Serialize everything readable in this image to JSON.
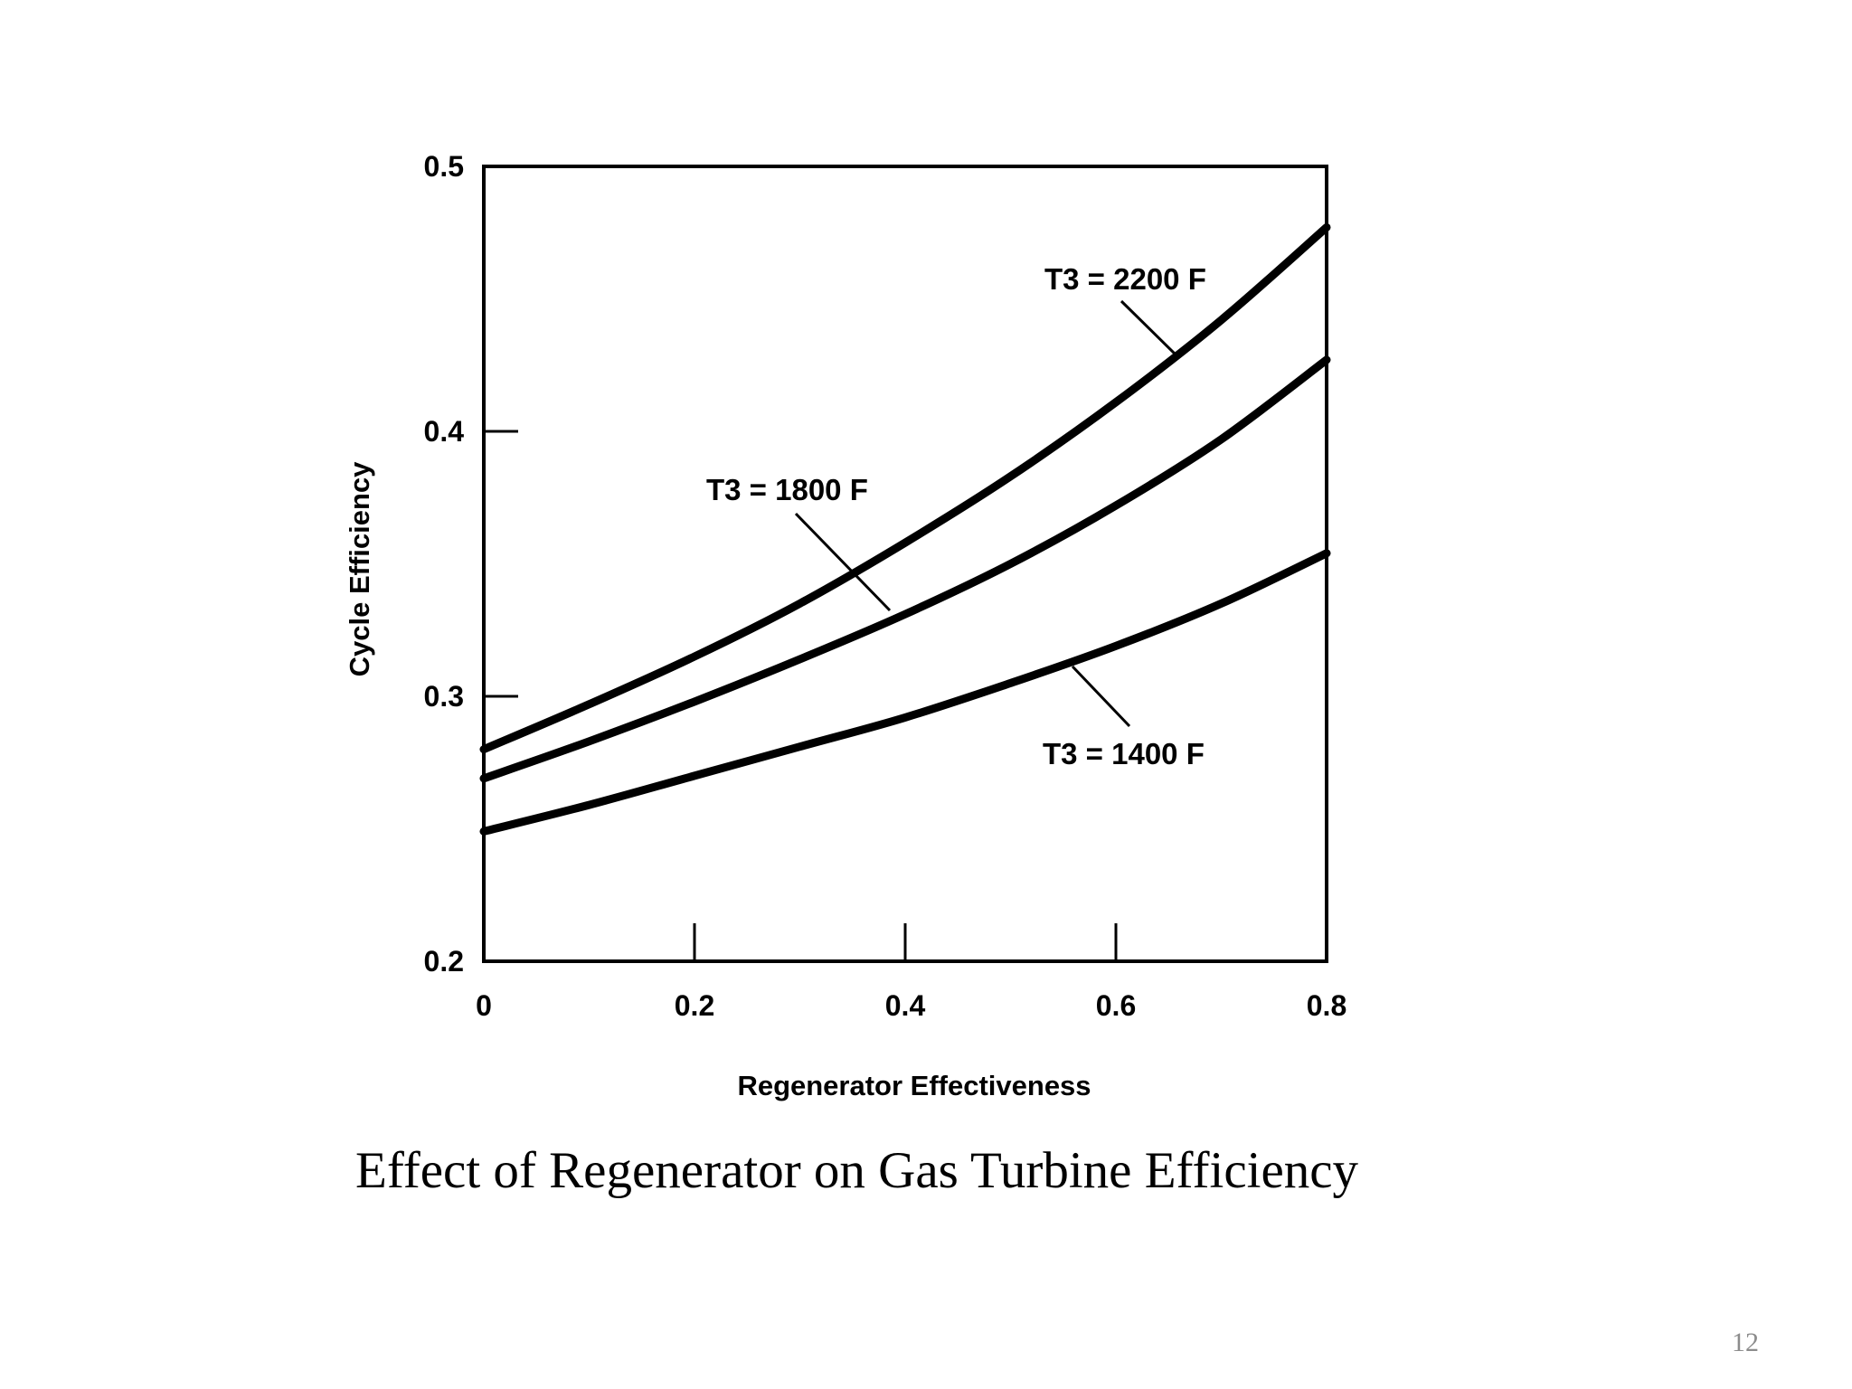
{
  "slide": {
    "caption": "Effect of Regenerator on Gas Turbine Efficiency",
    "number": "12"
  },
  "chart_data": {
    "type": "line",
    "title": "",
    "xlabel": "Regenerator Effectiveness",
    "ylabel": "Cycle Efficiency",
    "xlim": [
      0,
      0.8
    ],
    "ylim": [
      0.2,
      0.5
    ],
    "x_ticks": [
      "0",
      "0.2",
      "0.4",
      "0.6",
      "0.8"
    ],
    "y_ticks": [
      "0.2",
      "0.3",
      "0.4",
      "0.5"
    ],
    "grid": false,
    "x": [
      0,
      0.1,
      0.2,
      0.3,
      0.4,
      0.5,
      0.6,
      0.7,
      0.8
    ],
    "series": [
      {
        "name": "T3 = 2200 F",
        "values": [
          0.28,
          0.297,
          0.315,
          0.335,
          0.358,
          0.383,
          0.411,
          0.442,
          0.477
        ]
      },
      {
        "name": "T3 = 1800 F",
        "values": [
          0.269,
          0.283,
          0.298,
          0.314,
          0.331,
          0.35,
          0.372,
          0.397,
          0.427
        ]
      },
      {
        "name": "T3 = 1400 F",
        "values": [
          0.249,
          0.259,
          0.27,
          0.281,
          0.292,
          0.305,
          0.319,
          0.335,
          0.354
        ]
      }
    ],
    "colors": {
      "line": "#000000",
      "axis": "#000000"
    }
  }
}
